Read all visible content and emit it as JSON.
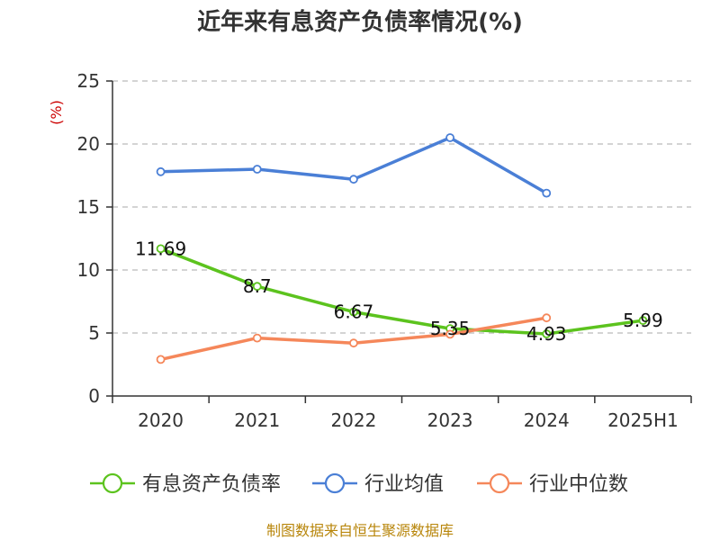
{
  "chart_data": {
    "type": "line",
    "title": "近年来有息资产负债率情况(%)",
    "ylabel": "(%)",
    "xlabel": "",
    "categories": [
      "2020",
      "2021",
      "2022",
      "2023",
      "2024",
      "2025H1"
    ],
    "ylim": [
      0,
      25
    ],
    "yticks": [
      0,
      5,
      10,
      15,
      20,
      25
    ],
    "grid": true,
    "legend_position": "bottom",
    "series": [
      {
        "name": "有息资产负债率",
        "color": "#5cc31e",
        "values": [
          11.69,
          8.7,
          6.67,
          5.35,
          4.93,
          5.99
        ],
        "labels": [
          "11.69",
          "8.7",
          "6.67",
          "5.35",
          "4.93",
          "5.99"
        ]
      },
      {
        "name": "行业均值",
        "color": "#4a7fd6",
        "values": [
          17.8,
          18.0,
          17.2,
          20.5,
          16.1,
          null
        ]
      },
      {
        "name": "行业中位数",
        "color": "#f5875a",
        "values": [
          2.9,
          4.6,
          4.2,
          4.9,
          6.2,
          null
        ]
      }
    ]
  },
  "source": "制图数据来自恒生聚源数据库"
}
